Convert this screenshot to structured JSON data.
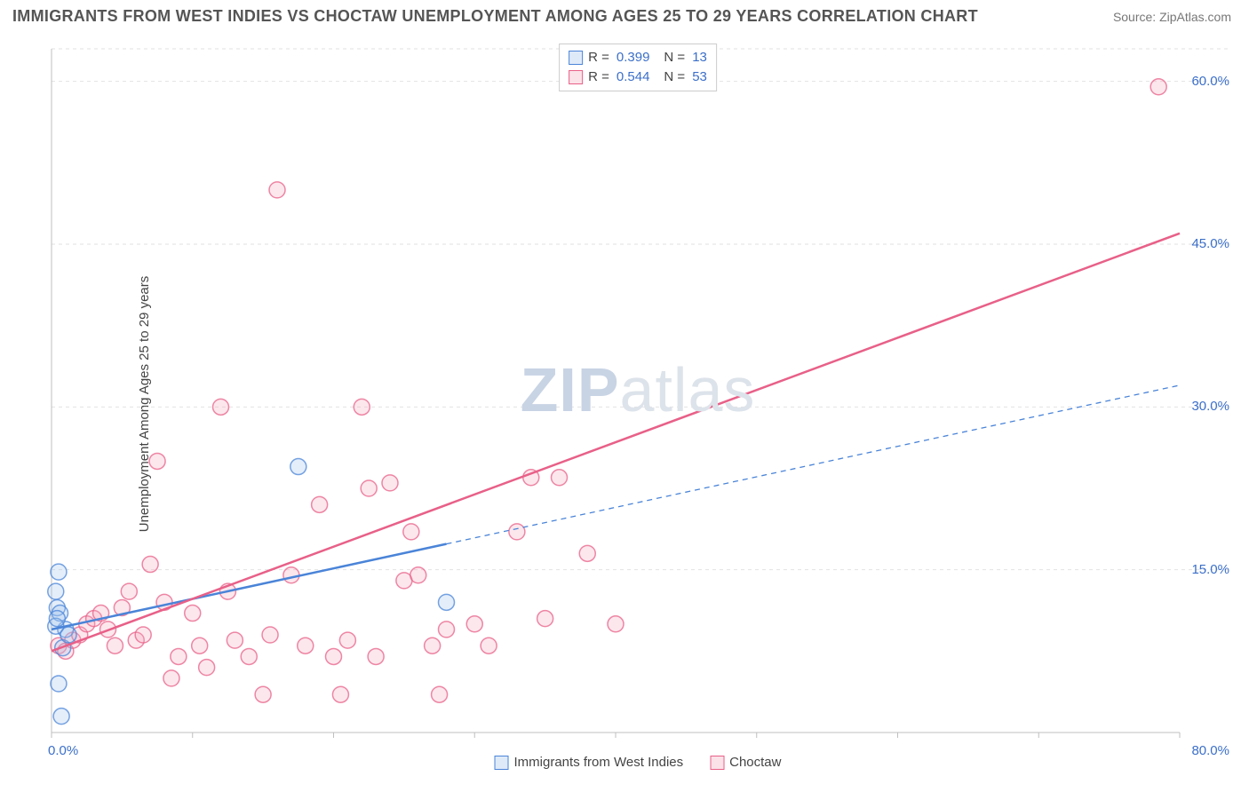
{
  "header": {
    "title": "IMMIGRANTS FROM WEST INDIES VS CHOCTAW UNEMPLOYMENT AMONG AGES 25 TO 29 YEARS CORRELATION CHART",
    "source": "Source: ZipAtlas.com"
  },
  "watermark": {
    "zip": "ZIP",
    "atlas": "atlas"
  },
  "chart": {
    "type": "scatter",
    "ylabel": "Unemployment Among Ages 25 to 29 years",
    "xlim": [
      0,
      80
    ],
    "ylim": [
      0,
      63
    ],
    "xticks": [
      0,
      10,
      20,
      30,
      40,
      50,
      60,
      70,
      80
    ],
    "ygrid": [
      15,
      30,
      45,
      60
    ],
    "y_axis_labels": [
      {
        "v": 15,
        "label": "15.0%"
      },
      {
        "v": 30,
        "label": "30.0%"
      },
      {
        "v": 45,
        "label": "45.0%"
      },
      {
        "v": 60,
        "label": "60.0%"
      }
    ],
    "x_origin_label": "0.0%",
    "x_max_label": "80.0%",
    "background_color": "#ffffff",
    "grid_color": "#e2e2e2",
    "axis_color": "#bfbfbf",
    "marker_radius": 9,
    "marker_stroke_width": 1.5,
    "marker_fill_opacity": 0.28,
    "line_width": 2.5,
    "series": [
      {
        "name": "Immigrants from West Indies",
        "color_stroke": "#4a84d8",
        "color_fill": "#9fc1ec",
        "r": 0.399,
        "n": 13,
        "trend": {
          "x1": 0,
          "y1": 9.5,
          "x2": 80,
          "y2": 32,
          "solid_until_x": 28
        },
        "points": [
          [
            0.5,
            14.8
          ],
          [
            0.3,
            13.0
          ],
          [
            0.4,
            11.5
          ],
          [
            0.6,
            11.0
          ],
          [
            0.8,
            7.8
          ],
          [
            1.0,
            9.5
          ],
          [
            0.5,
            4.5
          ],
          [
            0.7,
            1.5
          ],
          [
            0.3,
            9.8
          ],
          [
            0.4,
            10.5
          ],
          [
            17.5,
            24.5
          ],
          [
            28.0,
            12.0
          ],
          [
            1.2,
            9.0
          ]
        ]
      },
      {
        "name": "Choctaw",
        "color_stroke": "#e86088",
        "color_fill": "#f3a8bd",
        "r": 0.544,
        "n": 53,
        "trend": {
          "x1": 0,
          "y1": 7.5,
          "x2": 80,
          "y2": 46,
          "solid_until_x": 80
        },
        "points": [
          [
            0.5,
            8.0
          ],
          [
            1.0,
            7.5
          ],
          [
            1.5,
            8.5
          ],
          [
            2.0,
            9.0
          ],
          [
            2.5,
            10.0
          ],
          [
            3.0,
            10.5
          ],
          [
            3.5,
            11.0
          ],
          [
            4.0,
            9.5
          ],
          [
            4.5,
            8.0
          ],
          [
            5.0,
            11.5
          ],
          [
            5.5,
            13.0
          ],
          [
            6.0,
            8.5
          ],
          [
            6.5,
            9.0
          ],
          [
            7.0,
            15.5
          ],
          [
            7.5,
            25.0
          ],
          [
            8.0,
            12.0
          ],
          [
            8.5,
            5.0
          ],
          [
            9.0,
            7.0
          ],
          [
            10.0,
            11.0
          ],
          [
            10.5,
            8.0
          ],
          [
            11.0,
            6.0
          ],
          [
            12.0,
            30.0
          ],
          [
            12.5,
            13.0
          ],
          [
            13.0,
            8.5
          ],
          [
            14.0,
            7.0
          ],
          [
            15.0,
            3.5
          ],
          [
            15.5,
            9.0
          ],
          [
            16.0,
            50.0
          ],
          [
            17.0,
            14.5
          ],
          [
            18.0,
            8.0
          ],
          [
            19.0,
            21.0
          ],
          [
            20.0,
            7.0
          ],
          [
            20.5,
            3.5
          ],
          [
            21.0,
            8.5
          ],
          [
            22.0,
            30.0
          ],
          [
            22.5,
            22.5
          ],
          [
            23.0,
            7.0
          ],
          [
            24.0,
            23.0
          ],
          [
            25.0,
            14.0
          ],
          [
            25.5,
            18.5
          ],
          [
            26.0,
            14.5
          ],
          [
            27.0,
            8.0
          ],
          [
            27.5,
            3.5
          ],
          [
            28.0,
            9.5
          ],
          [
            30.0,
            10.0
          ],
          [
            31.0,
            8.0
          ],
          [
            33.0,
            18.5
          ],
          [
            34.0,
            23.5
          ],
          [
            35.0,
            10.5
          ],
          [
            36.0,
            23.5
          ],
          [
            38.0,
            16.5
          ],
          [
            40.0,
            10.0
          ],
          [
            78.5,
            59.5
          ]
        ]
      }
    ]
  }
}
